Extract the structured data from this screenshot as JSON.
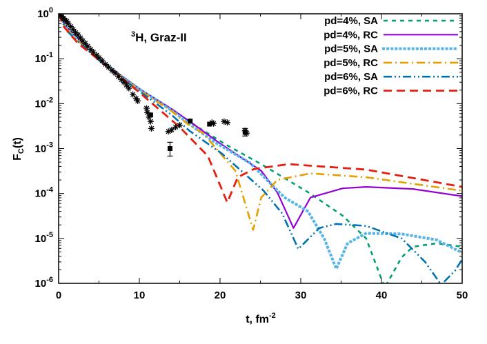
{
  "chart_data": {
    "type": "line",
    "xlabel": "t, fm",
    "xlabel_sup": "-2",
    "ylabel": "F",
    "ylabel_sub": "C",
    "ylabel_tail": "(t)",
    "annotation": {
      "sup": "3",
      "text": "H, Graz-II"
    },
    "xlim": [
      0,
      50
    ],
    "ylim": [
      1e-06,
      1
    ],
    "yscale": "log",
    "grid": false,
    "legend_position": "top-right",
    "xticks": [
      0,
      10,
      20,
      30,
      40,
      50
    ],
    "xtick_labels": [
      "0",
      "10",
      "20",
      "30",
      "40",
      "50"
    ],
    "yticks": [
      1,
      0.1,
      0.01,
      0.001,
      0.0001,
      1e-05,
      1e-06
    ],
    "ytick_labels": [
      {
        "base": "10",
        "exp": "0"
      },
      {
        "base": "10",
        "exp": "-1"
      },
      {
        "base": "10",
        "exp": "-2"
      },
      {
        "base": "10",
        "exp": "-3"
      },
      {
        "base": "10",
        "exp": "-4"
      },
      {
        "base": "10",
        "exp": "-5"
      },
      {
        "base": "10",
        "exp": "-6"
      }
    ],
    "series": [
      {
        "name": "pd=4%, SA",
        "color": "#009e73",
        "style": "dashed",
        "points": [
          [
            0,
            1
          ],
          [
            1,
            0.5
          ],
          [
            3,
            0.224
          ],
          [
            6,
            0.071
          ],
          [
            10,
            0.0214
          ],
          [
            14,
            0.0076
          ],
          [
            17,
            0.0032
          ],
          [
            20.8,
            0.0012
          ],
          [
            25.1,
            0.00045
          ],
          [
            30.9,
            0.000107
          ],
          [
            35.2,
            3.2e-05
          ],
          [
            38.1,
            1e-05
          ],
          [
            40.4,
            8e-07
          ],
          [
            42.5,
            3.8e-06
          ],
          [
            43.9,
            6.5e-06
          ],
          [
            46.8,
            7.8e-06
          ],
          [
            50,
            6.5e-06
          ]
        ]
      },
      {
        "name": "pd=4%, RC",
        "color": "#9400d3",
        "style": "solid",
        "points": [
          [
            0,
            1
          ],
          [
            1,
            0.5
          ],
          [
            3,
            0.224
          ],
          [
            6,
            0.071
          ],
          [
            10,
            0.0214
          ],
          [
            14,
            0.0076
          ],
          [
            16.7,
            0.0035
          ],
          [
            20,
            0.0013
          ],
          [
            25.1,
            0.00032
          ],
          [
            27.1,
            0.000105
          ],
          [
            29.1,
            1.7e-05
          ],
          [
            31.2,
            8.1e-05
          ],
          [
            35.2,
            0.00013
          ],
          [
            38.1,
            0.00014
          ],
          [
            43.9,
            0.000126
          ],
          [
            50,
            8.7e-05
          ]
        ]
      },
      {
        "name": "pd=5%, SA",
        "color": "#56b4e9",
        "style": "dotted",
        "points": [
          [
            0,
            1
          ],
          [
            1,
            0.48
          ],
          [
            3,
            0.21
          ],
          [
            6,
            0.07
          ],
          [
            10,
            0.021
          ],
          [
            14,
            0.0071
          ],
          [
            16.5,
            0.0032
          ],
          [
            19.3,
            0.0014
          ],
          [
            23.7,
            0.00048
          ],
          [
            28,
            8.1e-05
          ],
          [
            30.9,
            4e-05
          ],
          [
            32.9,
            1e-05
          ],
          [
            34.4,
            2.1e-06
          ],
          [
            35.8,
            7.8e-06
          ],
          [
            38.1,
            1.3e-05
          ],
          [
            42.5,
            1.26e-05
          ],
          [
            46.8,
            9.3e-06
          ],
          [
            50,
            4.8e-06
          ]
        ]
      },
      {
        "name": "pd=5%, RC",
        "color": "#e69f00",
        "style": "dashdot",
        "points": [
          [
            0,
            1
          ],
          [
            1,
            0.45
          ],
          [
            3,
            0.2
          ],
          [
            6,
            0.068
          ],
          [
            10,
            0.02
          ],
          [
            14,
            0.0068
          ],
          [
            16,
            0.0035
          ],
          [
            17.9,
            0.0022
          ],
          [
            21.9,
            0.00032
          ],
          [
            24.1,
            1.55e-05
          ],
          [
            25.1,
            8.1e-05
          ],
          [
            27.1,
            0.0002
          ],
          [
            31.2,
            0.00028
          ],
          [
            38.1,
            0.00023
          ],
          [
            50,
            0.000115
          ]
        ]
      },
      {
        "name": "pd=6%, SA",
        "color": "#0072b2",
        "style": "dashdotdot",
        "points": [
          [
            0,
            1
          ],
          [
            1,
            0.42
          ],
          [
            3,
            0.19
          ],
          [
            6,
            0.065
          ],
          [
            10,
            0.019
          ],
          [
            14,
            0.0056
          ],
          [
            16.2,
            0.0025
          ],
          [
            20.2,
            0.00078
          ],
          [
            25.4,
            0.000115
          ],
          [
            27.7,
            3.6e-05
          ],
          [
            29.7,
            5.8e-06
          ],
          [
            32.3,
            1.7e-05
          ],
          [
            34.4,
            2.1e-05
          ],
          [
            38.1,
            1.9e-05
          ],
          [
            42.5,
            1e-05
          ],
          [
            45.4,
            3e-06
          ],
          [
            47.4,
            9.3e-07
          ],
          [
            49.1,
            1.9e-06
          ],
          [
            50,
            3.4e-06
          ]
        ]
      },
      {
        "name": "pd=6%, RC",
        "color": "#e51e10",
        "style": "dashed-long",
        "points": [
          [
            0,
            1
          ],
          [
            0.7,
            0.5
          ],
          [
            2.4,
            0.219
          ],
          [
            6.7,
            0.054
          ],
          [
            10,
            0.0178
          ],
          [
            15,
            0.003
          ],
          [
            18.5,
            0.00068
          ],
          [
            20.9,
            6.3e-05
          ],
          [
            22.2,
            0.00023
          ],
          [
            24.2,
            0.00035
          ],
          [
            28.5,
            0.00045
          ],
          [
            38.1,
            0.00034
          ],
          [
            50,
            0.00014
          ]
        ]
      }
    ],
    "data_asterisks": [
      [
        0,
        1
      ],
      [
        0.2,
        0.93
      ],
      [
        0.4,
        0.87
      ],
      [
        0.6,
        0.8
      ],
      [
        0.8,
        0.72
      ],
      [
        1,
        0.68
      ],
      [
        1.2,
        0.6
      ],
      [
        1.5,
        0.52
      ],
      [
        1.8,
        0.45
      ],
      [
        2.1,
        0.38
      ],
      [
        2.4,
        0.34
      ],
      [
        2.7,
        0.29
      ],
      [
        3,
        0.25
      ],
      [
        3.3,
        0.22
      ],
      [
        3.6,
        0.19
      ],
      [
        4,
        0.16
      ],
      [
        4.3,
        0.14
      ],
      [
        4.7,
        0.12
      ],
      [
        5,
        0.105
      ],
      [
        5.4,
        0.09
      ],
      [
        5.8,
        0.075
      ],
      [
        6.2,
        0.065
      ],
      [
        6.6,
        0.055
      ],
      [
        7,
        0.048
      ],
      [
        7.4,
        0.04
      ],
      [
        7.8,
        0.034
      ],
      [
        8.1,
        0.03
      ],
      [
        8.4,
        0.026
      ],
      [
        8.7,
        0.022
      ],
      [
        9.2,
        0.016
      ],
      [
        9.6,
        0.013
      ],
      [
        9.8,
        0.0115
      ],
      [
        10.9,
        0.0079
      ],
      [
        11,
        0.0063
      ],
      [
        11.2,
        0.005
      ],
      [
        11.4,
        0.004
      ],
      [
        11.5,
        0.0028
      ],
      [
        13.6,
        0.0024
      ],
      [
        14,
        0.0026
      ],
      [
        14.5,
        0.003
      ],
      [
        15,
        0.0033
      ],
      [
        19,
        0.0038
      ],
      [
        19.2,
        0.0036
      ],
      [
        20.5,
        0.004
      ],
      [
        20.9,
        0.0038
      ],
      [
        23.1,
        0.0025
      ],
      [
        23.3,
        0.0022
      ]
    ],
    "data_squares": [
      {
        "x": 11.4,
        "y": 0.0056
      },
      {
        "x": 13.8,
        "y": 0.001,
        "err": [
          0.00068,
          0.00138
        ]
      },
      {
        "x": 16.3,
        "y": 0.0041
      },
      {
        "x": 18.7,
        "y": 0.0035
      },
      {
        "x": 23.1,
        "y": 0.0023,
        "err": [
          0.0019,
          0.0028
        ]
      }
    ]
  }
}
